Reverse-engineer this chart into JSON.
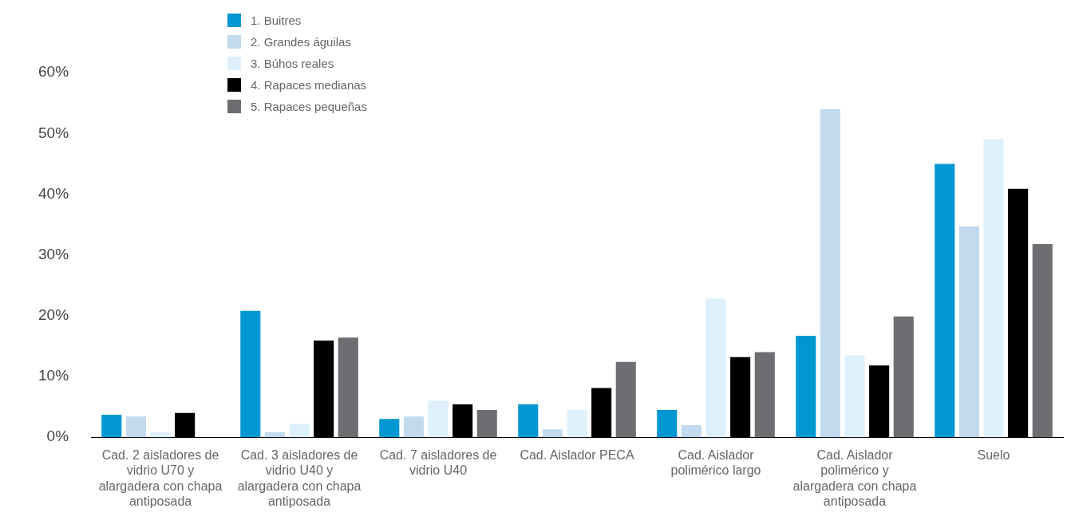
{
  "chart_data": {
    "type": "bar",
    "categories": [
      "Cad. 2 aisladores de vidrio U70 y alargadera con chapa antiposada",
      "Cad. 3 aisladores de vidrio U40 y alargadera con chapa antiposada",
      "Cad. 7 aisladores de vidrio U40",
      "Cad. Aislador PECA",
      "Cad. Aislador polimérico largo",
      "Cad. Aislador polimérico y alargadera con chapa antiposada",
      "Suelo"
    ],
    "series": [
      {
        "name": "1. Buitres",
        "color": "#0097d3",
        "values": [
          3.7,
          20.8,
          3.0,
          5.4,
          4.5,
          16.7,
          45.0
        ]
      },
      {
        "name": "2. Grandes águilas",
        "color": "#c2d9ee",
        "values": [
          3.4,
          0.8,
          3.4,
          1.3,
          2.0,
          54.0,
          34.7
        ]
      },
      {
        "name": "3. Búhos reales",
        "color": "#def0fb",
        "values": [
          0.8,
          2.2,
          6.0,
          4.5,
          22.8,
          13.5,
          49.1
        ]
      },
      {
        "name": "4. Rapaces medianas",
        "color": "#000000",
        "values": [
          4.0,
          15.9,
          5.4,
          8.1,
          13.2,
          11.8,
          40.9
        ]
      },
      {
        "name": "5. Rapaces pequeñas",
        "color": "#6d6e71",
        "values": [
          null,
          16.4,
          4.5,
          12.4,
          14.0,
          19.9,
          31.8
        ]
      }
    ],
    "ylim": [
      0,
      62
    ],
    "yticks": [
      {
        "value": 0,
        "label": "0%"
      },
      {
        "value": 10,
        "label": "10%"
      },
      {
        "value": 20,
        "label": "20%"
      },
      {
        "value": 30,
        "label": "30%"
      },
      {
        "value": 40,
        "label": "40%"
      },
      {
        "value": 50,
        "label": "50%"
      },
      {
        "value": 60,
        "label": "60%"
      }
    ],
    "grid": false,
    "legend": "top left"
  }
}
